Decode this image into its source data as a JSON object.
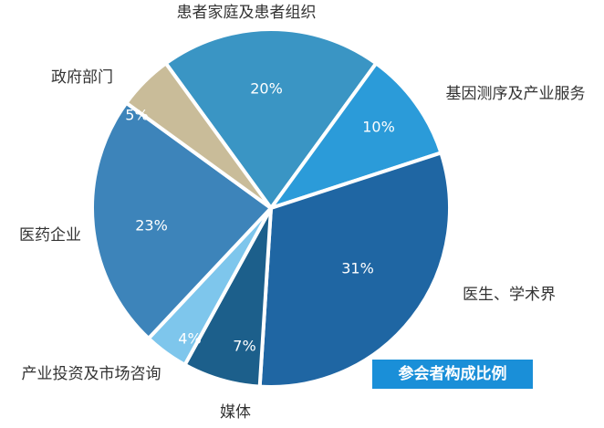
{
  "chart_data": {
    "type": "pie",
    "title": "参会者构成比例",
    "categories": [
      "患者家庭及患者组织",
      "基因测序及产业服务",
      "医生、学术界",
      "媒体",
      "产业投资及市场咨询",
      "医药企业",
      "政府部门"
    ],
    "values": [
      20,
      10,
      31,
      7,
      4,
      23,
      5
    ],
    "value_labels": [
      "20%",
      "10%",
      "31%",
      "7%",
      "4%",
      "23%",
      "5%"
    ],
    "colors": [
      "#3a95c4",
      "#2b9bd9",
      "#1f66a3",
      "#1c5f8b",
      "#7ec6ec",
      "#3d84ba",
      "#c9bc99"
    ]
  }
}
